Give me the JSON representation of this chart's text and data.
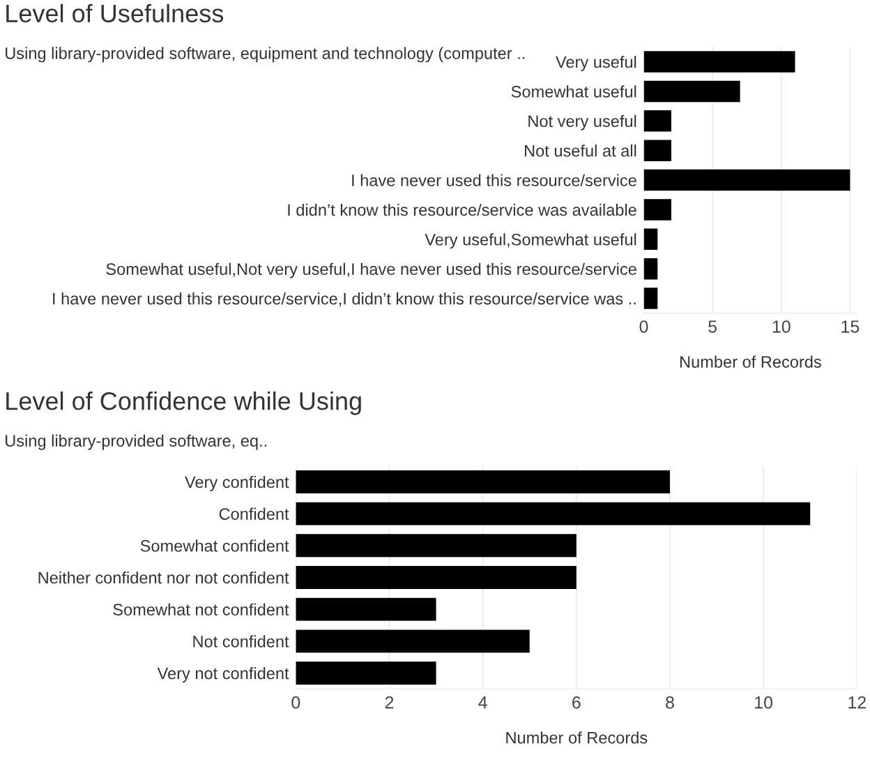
{
  "chart_data": [
    {
      "type": "bar",
      "orientation": "horizontal",
      "title": "Level of Usefulness",
      "subtitle": "Using library-provided software, equipment and technology (computer ..",
      "xlabel": "Number of Records",
      "categories": [
        "Very useful",
        "Somewhat useful",
        "Not very useful",
        "Not useful at all",
        "I have never used this resource/service",
        "I didn’t know this resource/service was available",
        "Very useful,Somewhat useful",
        "Somewhat useful,Not very useful,I have never used this resource/service",
        "I have never used this resource/service,I didn’t know this resource/service was .."
      ],
      "values": [
        11,
        7,
        2,
        2,
        15,
        2,
        1,
        1,
        1
      ],
      "color": "#000000",
      "xlim": [
        0,
        15.5
      ],
      "xticks": [
        0,
        5,
        10,
        15
      ],
      "grid": "x"
    },
    {
      "type": "bar",
      "orientation": "horizontal",
      "title": "Level of Confidence while Using",
      "subtitle": "Using library-provided software, eq..",
      "xlabel": "Number of Records",
      "categories": [
        "Very confident",
        "Confident",
        "Somewhat confident",
        "Neither confident nor not confident",
        "Somewhat not confident",
        "Not confident",
        "Very not confident"
      ],
      "values": [
        8,
        11,
        6,
        6,
        3,
        5,
        3
      ],
      "color": "#000000",
      "xlim": [
        0,
        12
      ],
      "xticks": [
        0,
        2,
        4,
        6,
        8,
        10,
        12
      ],
      "grid": "x"
    }
  ]
}
